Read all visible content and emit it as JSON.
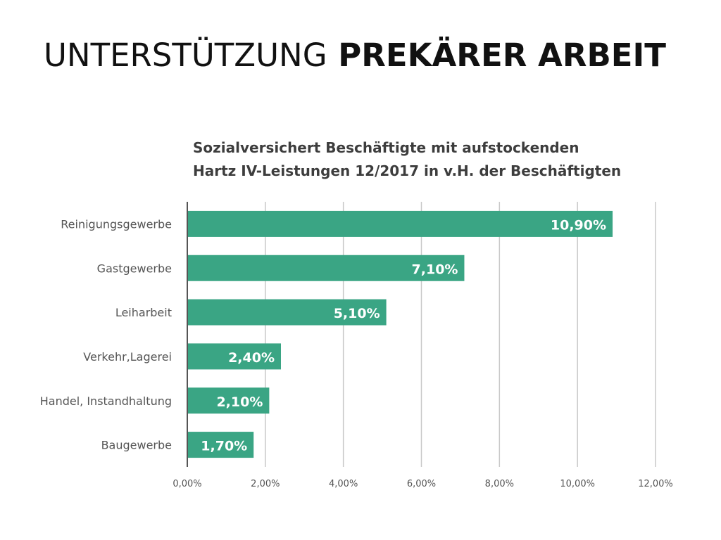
{
  "slide": {
    "title_light": "UNTERSTÜTZUNG",
    "title_bold": "PREKÄRER ARBEIT"
  },
  "colors": {
    "bar": "#3aa584",
    "bar_label": "#ffffff",
    "axis_text": "#555555",
    "grid": "#c8c8c8",
    "axis_line": "#555555"
  },
  "chart_data": {
    "type": "bar",
    "orientation": "horizontal",
    "title_lines": [
      "Sozialversichert Beschäftigte mit aufstockenden",
      "Hartz IV-Leistungen 12/2017 in v.H. der Beschäftigten"
    ],
    "categories": [
      "Reinigungsgewerbe",
      "Gastgewerbe",
      "Leiharbeit",
      "Verkehr,Lagerei",
      "Handel, Instandhaltung",
      "Baugewerbe"
    ],
    "values": [
      10.9,
      7.1,
      5.1,
      2.4,
      2.1,
      1.7
    ],
    "data_labels": [
      "10,90%",
      "7,10%",
      "5,10%",
      "2,40%",
      "2,10%",
      "1,70%"
    ],
    "x_ticks": [
      0,
      2,
      4,
      6,
      8,
      10,
      12
    ],
    "x_tick_labels": [
      "0,00%",
      "2,00%",
      "4,00%",
      "6,00%",
      "8,00%",
      "10,00%",
      "12,00%"
    ],
    "xlim": [
      0,
      12
    ],
    "grid": true,
    "legend": false
  }
}
